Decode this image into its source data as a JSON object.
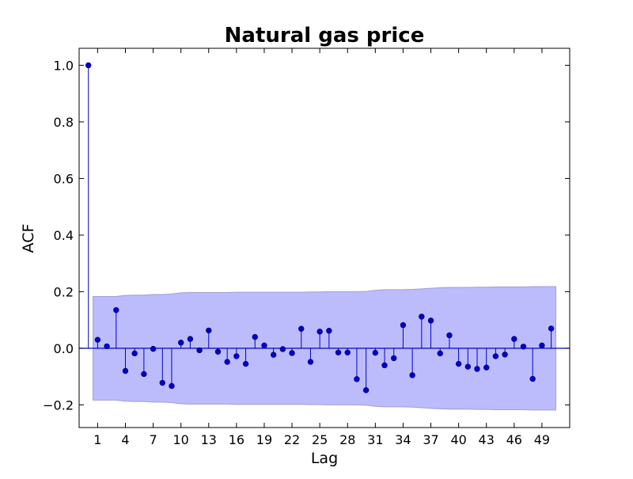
{
  "chart_data": {
    "type": "stem",
    "title": "Natural gas price",
    "xlabel": "Lag",
    "ylabel": "ACF",
    "xlim": [
      -1,
      52
    ],
    "ylim": [
      -0.28,
      1.06
    ],
    "x_ticks": [
      1,
      4,
      7,
      10,
      13,
      16,
      19,
      22,
      25,
      28,
      31,
      34,
      37,
      40,
      43,
      46,
      49
    ],
    "y_ticks": [
      -0.2,
      0.0,
      0.2,
      0.4,
      0.6,
      0.8,
      1.0
    ],
    "y_tick_labels": [
      "−0.2",
      "0.0",
      "0.2",
      "0.4",
      "0.6",
      "0.8",
      "1.0"
    ],
    "grid": false,
    "colors": {
      "stem": "#0000cc",
      "marker": "#0000cc",
      "confidence_fill": "#bcbcfd",
      "confidence_edge": "#9e9ed8",
      "baseline": "#0000cc"
    },
    "lags": [
      0,
      1,
      2,
      3,
      4,
      5,
      6,
      7,
      8,
      9,
      10,
      11,
      12,
      13,
      14,
      15,
      16,
      17,
      18,
      19,
      20,
      21,
      22,
      23,
      24,
      25,
      26,
      27,
      28,
      29,
      30,
      31,
      32,
      33,
      34,
      35,
      36,
      37,
      38,
      39,
      40,
      41,
      42,
      43,
      44,
      45,
      46,
      47,
      48,
      49,
      50
    ],
    "values": [
      1.0,
      0.03,
      0.007,
      0.135,
      -0.08,
      -0.018,
      -0.091,
      -0.002,
      -0.122,
      -0.133,
      0.02,
      0.033,
      -0.007,
      0.063,
      -0.012,
      -0.048,
      -0.028,
      -0.055,
      0.04,
      0.01,
      -0.023,
      -0.003,
      -0.017,
      0.069,
      -0.048,
      0.059,
      0.062,
      -0.015,
      -0.015,
      -0.109,
      -0.148,
      -0.016,
      -0.06,
      -0.035,
      0.082,
      -0.095,
      0.112,
      0.098,
      -0.018,
      0.046,
      -0.055,
      -0.065,
      -0.073,
      -0.068,
      -0.028,
      -0.022,
      0.033,
      0.006,
      -0.108,
      0.01,
      0.07
    ],
    "confidence_band": {
      "lags": [
        1,
        2,
        3,
        4,
        5,
        6,
        7,
        8,
        9,
        10,
        11,
        12,
        13,
        14,
        15,
        16,
        17,
        18,
        19,
        20,
        21,
        22,
        23,
        24,
        25,
        26,
        27,
        28,
        29,
        30,
        31,
        32,
        33,
        34,
        35,
        36,
        37,
        38,
        39,
        40,
        41,
        42,
        43,
        44,
        45,
        46,
        47,
        48,
        49,
        50
      ],
      "upper": [
        0.183,
        0.183,
        0.183,
        0.187,
        0.188,
        0.188,
        0.19,
        0.19,
        0.192,
        0.196,
        0.197,
        0.197,
        0.197,
        0.197,
        0.197,
        0.198,
        0.198,
        0.198,
        0.198,
        0.198,
        0.198,
        0.198,
        0.198,
        0.199,
        0.199,
        0.2,
        0.2,
        0.2,
        0.2,
        0.201,
        0.205,
        0.207,
        0.207,
        0.207,
        0.208,
        0.21,
        0.212,
        0.214,
        0.215,
        0.215,
        0.215,
        0.216,
        0.216,
        0.217,
        0.217,
        0.217,
        0.217,
        0.218,
        0.218,
        0.218
      ]
    }
  }
}
